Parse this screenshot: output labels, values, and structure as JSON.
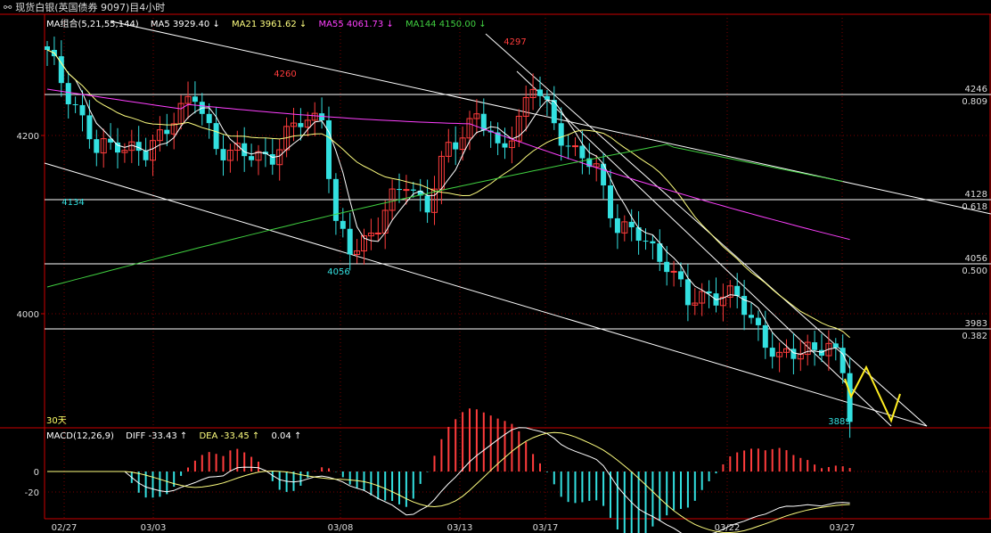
{
  "window": {
    "title_icon": "chain-link-icon",
    "title": "现货白银(英国债券 9097)目4小时"
  },
  "legend": {
    "ma_group": "MA组合(5,21,55,144)",
    "ma5": "MA5 3929.40 ↓",
    "ma21": "MA21 3961.62 ↓",
    "ma55": "MA55 4061.73 ↓",
    "ma144": "MA144 4150.00 ↓"
  },
  "macd_legend": {
    "name": "MACD(12,26,9)",
    "diff": "DIFF -33.43 ↑",
    "dea": "DEA -33.45 ↑",
    "macd": "0.04 ↑"
  },
  "period_label": "30天",
  "colors": {
    "background": "#000000",
    "up_candle": "#ff3c3c",
    "down_candle": "#33e0e0",
    "ma5": "#ffffff",
    "ma21": "#ffff80",
    "ma55": "#ff40ff",
    "ma144": "#40d040",
    "fib_line": "#ffffff",
    "trend_line": "#ffffff",
    "forecast": "#ffee22",
    "axis": "#cc0000",
    "ma_group_text": "#ffffff"
  },
  "chart_data": {
    "type": "candlestick",
    "price_range": [
      3869,
      4297
    ],
    "y_tick_labels": [
      "4200",
      "4000"
    ],
    "x_tick_labels": [
      "02/27",
      "03/03",
      "03/08",
      "03/13",
      "03/17",
      "03/22",
      "03/27"
    ],
    "annotations": {
      "high_label": "4297",
      "high_left": "4260",
      "low_left_1": "4134",
      "low_left_2": "4056",
      "low_last": "3889"
    },
    "fib_levels": [
      {
        "price": 4246,
        "ratio": "0.809"
      },
      {
        "price": 4128,
        "ratio": "0.618"
      },
      {
        "price": 4056,
        "ratio": "0.500"
      },
      {
        "price": 3983,
        "ratio": "0.382"
      }
    ],
    "macd": {
      "y_tick_labels": [
        "0",
        "-20"
      ],
      "diff": -33.43,
      "dea": -33.45,
      "hist": 0.04
    }
  }
}
